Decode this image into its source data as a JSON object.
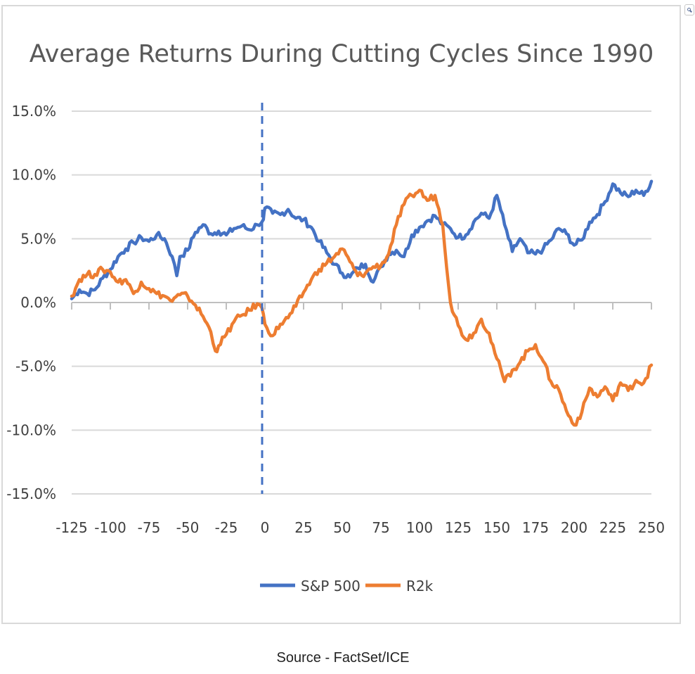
{
  "chart_data": {
    "type": "line",
    "title": "Average Returns During Cutting Cycles Since 1990",
    "xlabel": "",
    "ylabel": "",
    "xlim": [
      -125,
      250
    ],
    "ylim": [
      -15.0,
      15.0
    ],
    "x_ticks": [
      "-125",
      "-100",
      "-75",
      "-50",
      "-25",
      "0",
      "25",
      "50",
      "75",
      "100",
      "125",
      "150",
      "175",
      "200",
      "225",
      "250"
    ],
    "y_ticks": [
      "15.0%",
      "10.0%",
      "5.0%",
      "0.0%",
      "-5.0%",
      "-10.0%",
      "-15.0%"
    ],
    "grid": "horizontal",
    "vertical_marker_x": 0,
    "legend_position": "bottom",
    "series": [
      {
        "name": "S&P 500",
        "color": "#4472c4",
        "x": [
          -125,
          -120,
          -115,
          -110,
          -105,
          -100,
          -95,
          -90,
          -85,
          -80,
          -75,
          -70,
          -65,
          -60,
          -57,
          -55,
          -50,
          -45,
          -40,
          -35,
          -30,
          -25,
          -20,
          -15,
          -10,
          -5,
          -1,
          0,
          5,
          10,
          15,
          20,
          25,
          30,
          35,
          40,
          45,
          50,
          55,
          60,
          65,
          70,
          75,
          80,
          85,
          90,
          95,
          100,
          105,
          110,
          115,
          120,
          125,
          130,
          135,
          140,
          145,
          150,
          155,
          160,
          165,
          170,
          175,
          180,
          185,
          190,
          195,
          200,
          205,
          210,
          215,
          220,
          225,
          230,
          235,
          240,
          245,
          250
        ],
        "values": [
          0.3,
          1.0,
          0.7,
          1.0,
          1.9,
          2.6,
          3.6,
          4.2,
          4.7,
          5.1,
          4.8,
          5.3,
          5.0,
          3.6,
          2.1,
          3.6,
          4.1,
          5.5,
          6.1,
          5.4,
          5.6,
          5.3,
          5.8,
          6.0,
          5.7,
          6.1,
          6.5,
          7.4,
          7.0,
          6.9,
          7.3,
          6.6,
          6.5,
          5.9,
          4.8,
          3.9,
          3.0,
          2.3,
          2.0,
          2.7,
          3.0,
          1.6,
          2.8,
          3.8,
          4.1,
          3.6,
          5.3,
          5.9,
          6.4,
          6.8,
          6.1,
          5.8,
          5.1,
          5.3,
          6.3,
          7.0,
          6.6,
          8.4,
          6.1,
          4.0,
          5.0,
          3.9,
          3.8,
          4.2,
          4.9,
          5.8,
          5.4,
          4.5,
          4.9,
          6.3,
          6.9,
          7.9,
          9.3,
          8.6,
          8.3,
          8.8,
          8.4,
          9.5
        ]
      },
      {
        "name": "R2k",
        "color": "#ed7d31",
        "x": [
          -125,
          -120,
          -115,
          -110,
          -105,
          -100,
          -95,
          -90,
          -85,
          -80,
          -75,
          -70,
          -65,
          -60,
          -55,
          -50,
          -45,
          -40,
          -35,
          -32,
          -30,
          -25,
          -20,
          -15,
          -10,
          -5,
          -2,
          0,
          5,
          10,
          15,
          20,
          25,
          30,
          35,
          40,
          45,
          50,
          55,
          60,
          65,
          70,
          75,
          80,
          85,
          90,
          95,
          100,
          105,
          110,
          115,
          120,
          125,
          130,
          135,
          140,
          145,
          150,
          155,
          160,
          165,
          170,
          175,
          180,
          185,
          190,
          195,
          200,
          205,
          210,
          215,
          220,
          225,
          230,
          235,
          240,
          245,
          250
        ],
        "values": [
          0.5,
          1.8,
          2.2,
          2.2,
          2.6,
          2.4,
          1.6,
          1.8,
          0.7,
          1.6,
          1.1,
          0.7,
          0.5,
          0.1,
          0.6,
          0.5,
          -0.2,
          -1.1,
          -2.3,
          -3.8,
          -3.4,
          -2.5,
          -1.5,
          -1.0,
          -0.6,
          -0.1,
          -0.4,
          -1.7,
          -2.6,
          -1.7,
          -1.2,
          -0.3,
          0.8,
          1.8,
          2.6,
          3.1,
          3.6,
          4.2,
          3.2,
          2.1,
          2.3,
          2.8,
          2.9,
          3.8,
          6.1,
          7.7,
          8.4,
          8.8,
          8.0,
          8.4,
          6.1,
          0.0,
          -1.8,
          -2.9,
          -2.4,
          -1.3,
          -2.4,
          -4.4,
          -6.2,
          -5.3,
          -4.7,
          -3.8,
          -3.3,
          -4.6,
          -6.2,
          -6.8,
          -8.5,
          -9.6,
          -8.6,
          -6.7,
          -7.4,
          -6.6,
          -7.7,
          -6.3,
          -6.9,
          -6.1,
          -6.3,
          -4.9
        ]
      }
    ]
  },
  "source_note": "Source - FactSet/ICE"
}
